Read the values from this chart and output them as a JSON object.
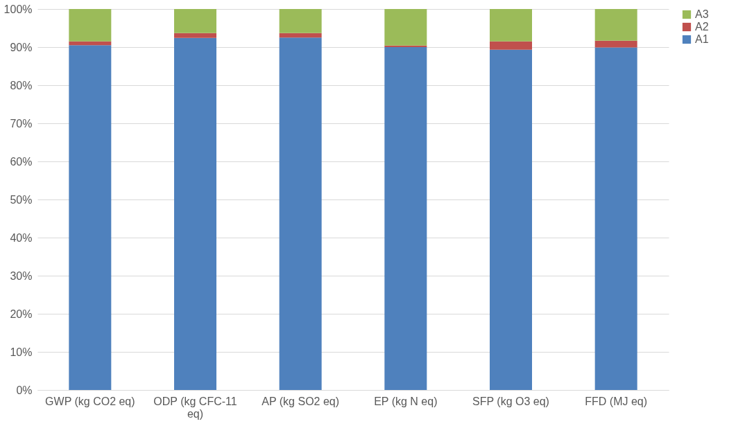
{
  "chart_data": {
    "type": "bar",
    "stacked": true,
    "categories": [
      "GWP (kg CO2 eq)",
      "ODP (kg CFC-11 eq)",
      "AP (kg SO2 eq)",
      "EP (kg N eq)",
      "SFP (kg O3 eq)",
      "FFD (MJ eq)"
    ],
    "series": [
      {
        "name": "A1",
        "color": "#4f81bd",
        "values": [
          90.5,
          92.4,
          92.5,
          90.0,
          89.3,
          89.9
        ]
      },
      {
        "name": "A2",
        "color": "#c0504d",
        "values": [
          1.0,
          1.3,
          1.2,
          0.4,
          2.2,
          1.8
        ]
      },
      {
        "name": "A3",
        "color": "#9bbb59",
        "values": [
          8.5,
          6.3,
          6.3,
          9.6,
          8.5,
          8.3
        ]
      }
    ],
    "ylim": [
      0,
      100
    ],
    "yticks": [
      {
        "value": 0,
        "label": "0%"
      },
      {
        "value": 10,
        "label": "10%"
      },
      {
        "value": 20,
        "label": "20%"
      },
      {
        "value": 30,
        "label": "30%"
      },
      {
        "value": 40,
        "label": "40%"
      },
      {
        "value": 50,
        "label": "50%"
      },
      {
        "value": 60,
        "label": "60%"
      },
      {
        "value": 70,
        "label": "70%"
      },
      {
        "value": 80,
        "label": "80%"
      },
      {
        "value": 90,
        "label": "90%"
      },
      {
        "value": 100,
        "label": "100%"
      }
    ],
    "grid": "y",
    "legend": "right"
  }
}
